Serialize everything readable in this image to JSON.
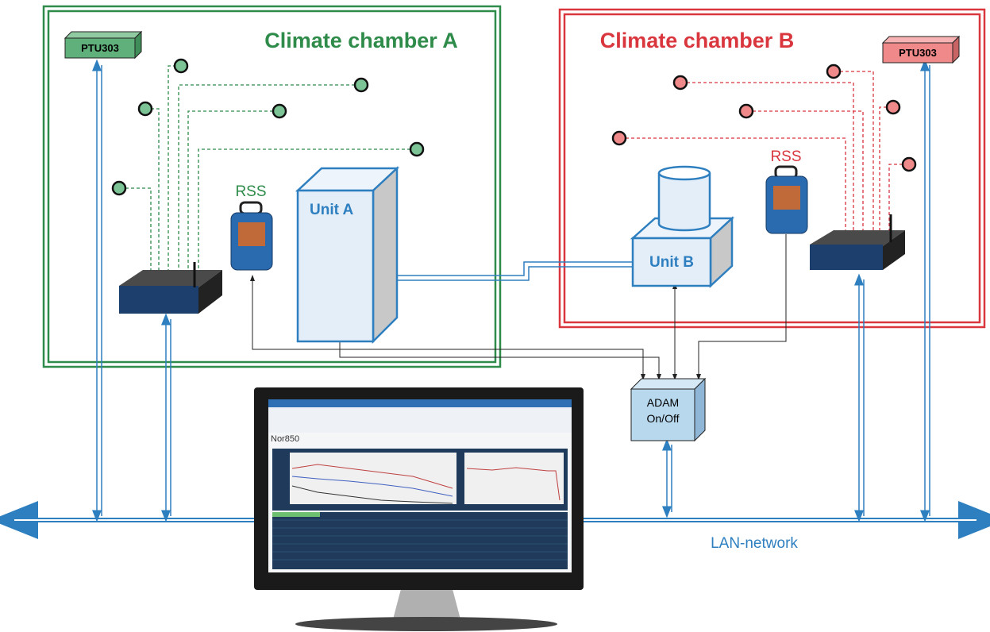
{
  "chamber_a": {
    "title": "Climate chamber A",
    "ptu": "PTU303",
    "rss": "RSS",
    "unit": "Unit A"
  },
  "chamber_b": {
    "title": "Climate chamber B",
    "ptu": "PTU303",
    "rss": "RSS",
    "unit": "Unit B"
  },
  "adam": {
    "lines": [
      "ADAM",
      "On/Off"
    ]
  },
  "network": {
    "label": "LAN-network"
  },
  "monitor": {
    "app": "Nor850"
  }
}
